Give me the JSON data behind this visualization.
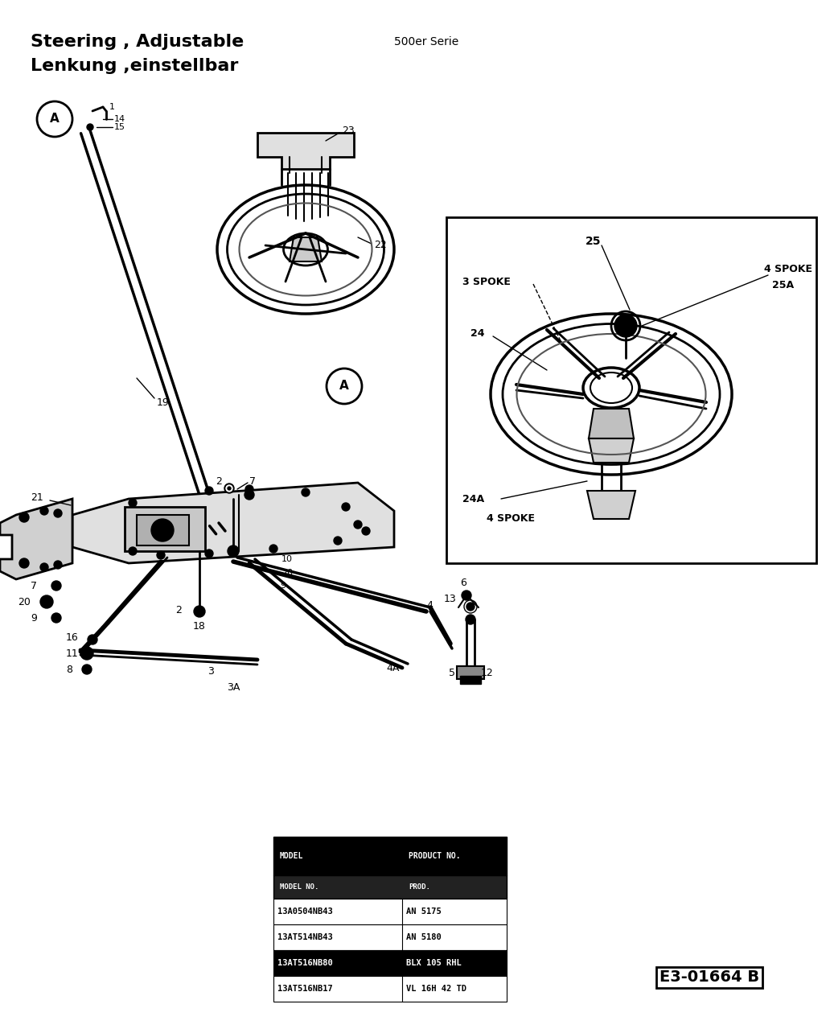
{
  "title_line1": "Steering , Adjustable",
  "title_line2": "Lenkung ,einstellbar",
  "subtitle": "500er Serie",
  "diagram_code": "E3-01664 B",
  "bg_color": "#ffffff",
  "table_rows": [
    [
      "13A0504NB43",
      "AN 5175"
    ],
    [
      "13AT514NB43",
      "AN 5180"
    ],
    [
      "13AT516NB80",
      "BLX 105 RHL"
    ],
    [
      "13AT516NB17",
      "VL 16H 42 TD"
    ]
  ]
}
